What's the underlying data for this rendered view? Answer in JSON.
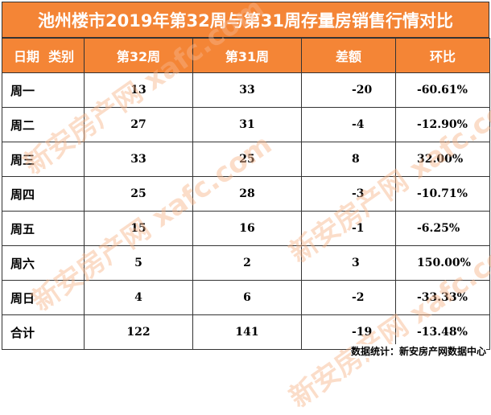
{
  "title": "池州楼市2019年第32周与第31周存量房销售行情对比",
  "header": {
    "corner_left": "日期",
    "corner_right": "类别",
    "col1": "第32周",
    "col2": "第31周",
    "col3": "差额",
    "col4": "环比"
  },
  "rows": [
    {
      "day": "周一",
      "w32": "13",
      "w31": "33",
      "diff": "-20",
      "ratio": "-60.61%"
    },
    {
      "day": "周二",
      "w32": "27",
      "w31": "31",
      "diff": "-4",
      "ratio": "-12.90%"
    },
    {
      "day": "周三",
      "w32": "33",
      "w31": "25",
      "diff": "8",
      "ratio": "32.00%"
    },
    {
      "day": "周四",
      "w32": "25",
      "w31": "28",
      "diff": "-3",
      "ratio": "-10.71%"
    },
    {
      "day": "周五",
      "w32": "15",
      "w31": "16",
      "diff": "-1",
      "ratio": "-6.25%"
    },
    {
      "day": "周六",
      "w32": "5",
      "w31": "2",
      "diff": "3",
      "ratio": "150.00%"
    },
    {
      "day": "周日",
      "w32": "4",
      "w31": "6",
      "diff": "-2",
      "ratio": "-33.33%"
    },
    {
      "day": "合计",
      "w32": "122",
      "w31": "141",
      "diff": "-19",
      "ratio": "-13.48%"
    }
  ],
  "watermark": "新安房产网 xafc.com",
  "source": "数据统计：新安房产网数据中心",
  "colors": {
    "header_bg": "#f48536",
    "header_text": "#ffffff"
  }
}
